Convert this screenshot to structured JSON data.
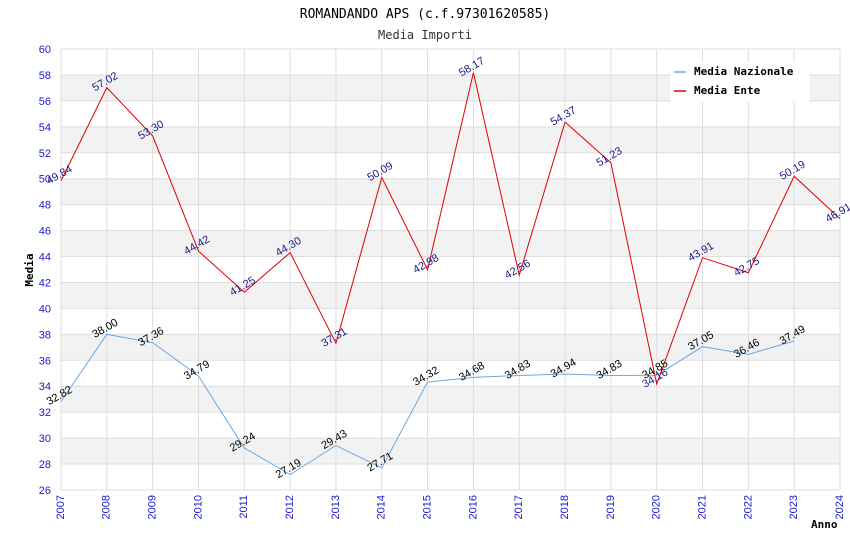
{
  "chart_data": {
    "type": "line",
    "title": "ROMANDANDO APS (c.f.97301620585)",
    "subtitle": "Media Importi",
    "xlabel": "Anno",
    "ylabel": "Media",
    "ylim": [
      26,
      60
    ],
    "ytick_step": 2,
    "grid": true,
    "legend_position": "top-right",
    "categories": [
      "2007",
      "2008",
      "2009",
      "2010",
      "2011",
      "2012",
      "2013",
      "2014",
      "2015",
      "2016",
      "2017",
      "2018",
      "2019",
      "2020",
      "2021",
      "2022",
      "2023",
      "2024"
    ],
    "series": [
      {
        "name": "Media Nazionale",
        "color": "#6aa8e8",
        "label_color": "#000000",
        "values": [
          32.82,
          38.0,
          37.36,
          34.79,
          29.24,
          27.19,
          29.43,
          27.71,
          34.32,
          34.68,
          34.83,
          34.94,
          34.83,
          34.85,
          37.05,
          36.46,
          37.49,
          null
        ],
        "labels": [
          "32.82",
          "38.00",
          "37.36",
          "34.79",
          "29.24",
          "27.19",
          "29.43",
          "27.71",
          "34.32",
          "34.68",
          "34.83",
          "34.94",
          "34.83",
          "34.85",
          "37.05",
          "36.46",
          "37.49",
          ""
        ]
      },
      {
        "name": "Media Ente",
        "color": "#e00000",
        "label_color": "#1a1a8c",
        "values": [
          49.84,
          57.02,
          53.3,
          44.42,
          41.25,
          44.3,
          37.31,
          50.09,
          42.98,
          58.17,
          42.56,
          54.37,
          51.23,
          34.16,
          43.91,
          42.75,
          50.19,
          46.91
        ],
        "labels": [
          "49.84",
          "57.02",
          "53.30",
          "44.42",
          "41.25",
          "44.30",
          "37.31",
          "50.09",
          "42.98",
          "58.17",
          "42.56",
          "54.37",
          "51.23",
          "34.16",
          "43.91",
          "42.75",
          "50.19",
          "46.91"
        ]
      }
    ],
    "colors": {
      "band": "#f2f2f2",
      "gridline": "#dddddd",
      "tick_text": "#1a1acc"
    }
  }
}
